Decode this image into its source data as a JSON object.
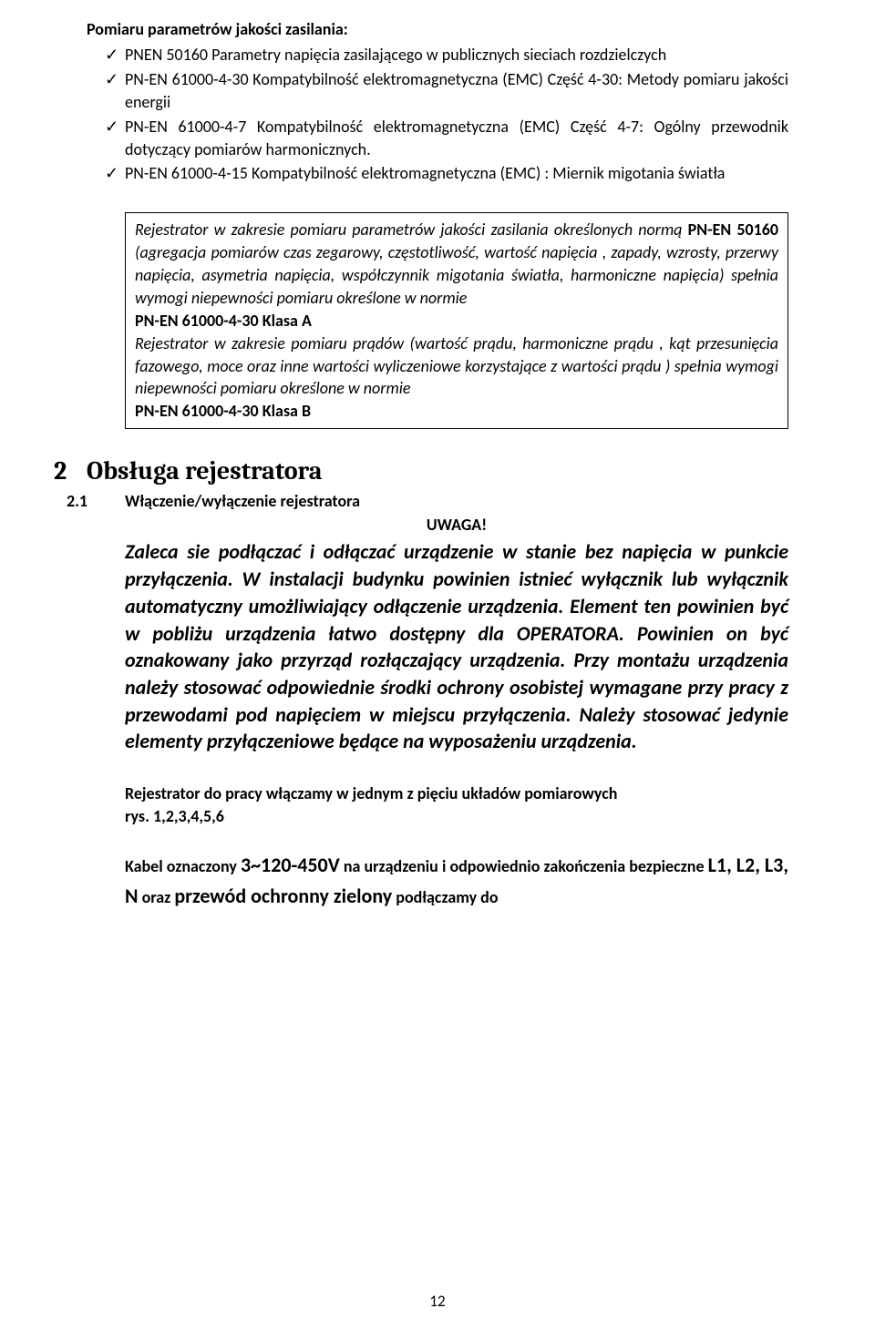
{
  "colors": {
    "text": "#000000",
    "background": "#ffffff",
    "border": "#000000"
  },
  "typography": {
    "body_family": "Calibri",
    "heading_family": "Cambria",
    "body_size_pt": 11,
    "heading_size_pt": 16
  },
  "intro_heading": "Pomiaru parametrów jakości zasilania:",
  "bullets": [
    "PNEN 50160 Parametry napięcia zasilającego w publicznych sieciach rozdzielczych",
    "PN-EN 61000-4-30 Kompatybilność elektromagnetyczna (EMC) Część 4-30: Metody pomiaru jakości energii",
    "PN-EN 61000-4-7 Kompatybilność elektromagnetyczna (EMC) Część 4-7: Ogólny przewodnik dotyczący pomiarów harmonicznych.",
    "PN-EN 61000-4-15 Kompatybilność elektromagnetyczna (EMC) : Miernik migotania światła"
  ],
  "box": {
    "p1_pre": "Rejestrator w zakresie pomiaru  parametrów jakości zasilania określonych normą ",
    "p1_bold": "PN-EN 50160",
    "p1_post": " (agregacja pomiarów  czas zegarowy, częstotliwość, wartość napięcia ,  zapady, wzrosty, przerwy napięcia, asymetria napięcia, współczynnik migotania światła, harmoniczne napięcia)  spełnia wymogi niepewności pomiaru określone w normie",
    "line_a": "PN-EN 61000-4-30 Klasa A",
    "p2": "Rejestrator w zakresie pomiaru  prądów (wartość prądu, harmoniczne  prądu , kąt przesunięcia fazowego, moce oraz inne wartości wyliczeniowe korzystające z wartości prądu ) spełnia wymogi niepewności pomiaru określone w normie",
    "line_b": "PN-EN 61000-4-30 Klasa B"
  },
  "section": {
    "num": "2",
    "title": "Obsługa rejestratora"
  },
  "subsection": {
    "num": "2.1",
    "title": "Włączenie/wyłączenie  rejestratora"
  },
  "uwaga": "UWAGA!",
  "warning": "Zaleca sie podłączać i odłączać urządzenie w stanie bez napięcia w punkcie przyłączenia. W instalacji budynku powinien istnieć wyłącznik lub wyłącznik automatyczny umożliwiający odłączenie urządzenia. Element ten powinien być w pobliżu urządzenia łatwo dostępny dla OPERATORA. Powinien on być oznakowany jako przyrząd rozłączający urządzenia. Przy montażu urządzenia należy stosować odpowiednie środki ochrony osobistej wymagane przy pracy z przewodami pod napięciem w miejscu przyłączenia. Należy stosować jedynie elementy przyłączeniowe będące na wyposażeniu urządzenia.",
  "after_warn_l1": "Rejestrator do pracy włączamy w jednym z pięciu układów pomiarowych",
  "after_warn_l2": " rys. 1,2,3,4,5,6",
  "cable": {
    "t1": "Kabel oznaczony ",
    "big1": "3~120-450V",
    "t2": " na urządzeniu i odpowiednio zakończenia bezpieczne ",
    "big2": "L1, L2, L3, N",
    "t3": " oraz ",
    "big3": "przewód ochronny zielony",
    "t4": " podłączamy do"
  },
  "page_number": "12"
}
